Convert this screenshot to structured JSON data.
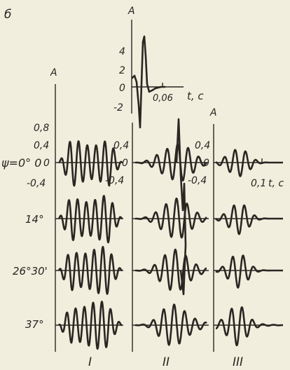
{
  "panel_letter": "б",
  "inset": {
    "y_axis_label": "A",
    "y_ticks": [
      "4",
      "2",
      "0",
      "-2"
    ],
    "x_tick": "0,06",
    "x_axis_label": "t, c"
  },
  "columns": [
    {
      "id": "I",
      "label": "I",
      "y_axis_label": "A",
      "y_ticks": [
        "0,8",
        "0,4",
        "0",
        "-0,4"
      ]
    },
    {
      "id": "II",
      "label": "II",
      "y_axis_label": "",
      "y_ticks": [
        "0,4",
        "0",
        "-0,4"
      ]
    },
    {
      "id": "III",
      "label": "III",
      "y_axis_label": "A",
      "y_ticks": [
        "0,4",
        "0",
        "-0,4"
      ],
      "x_tick": "0,1",
      "x_axis_label": "t, c"
    }
  ],
  "rows": [
    {
      "label": "ψ=0° 0"
    },
    {
      "label": "14°"
    },
    {
      "label": "26°30'"
    },
    {
      "label": "37°"
    }
  ]
}
